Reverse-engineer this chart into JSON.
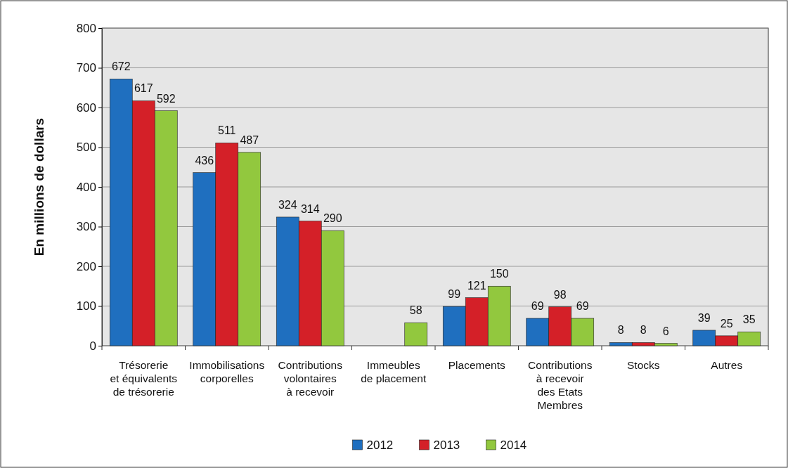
{
  "chart_data": {
    "type": "bar",
    "ylabel": "En millions de dollars",
    "categories": [
      "Trésorerie\net équivalents\nde trésorerie",
      "Immobilisations\ncorporelles",
      "Contributions\nvolontaires\nà recevoir",
      "Immeubles\nde placement",
      "Placements",
      "Contributions\nà recevoir\ndes Etats\nMembres",
      "Stocks",
      "Autres"
    ],
    "series": [
      {
        "name": "2012",
        "color": "#1f6fbf",
        "values": [
          672,
          436,
          324,
          null,
          99,
          69,
          8,
          39
        ]
      },
      {
        "name": "2013",
        "color": "#d42028",
        "values": [
          617,
          511,
          314,
          null,
          121,
          98,
          8,
          25
        ]
      },
      {
        "name": "2014",
        "color": "#92c83e",
        "values": [
          592,
          487,
          290,
          58,
          150,
          69,
          6,
          35
        ]
      }
    ],
    "ylim": [
      0,
      800
    ],
    "yticks": [
      0,
      100,
      200,
      300,
      400,
      500,
      600,
      700,
      800
    ],
    "grid": "y",
    "data_labels": true,
    "legend": "bottom"
  }
}
